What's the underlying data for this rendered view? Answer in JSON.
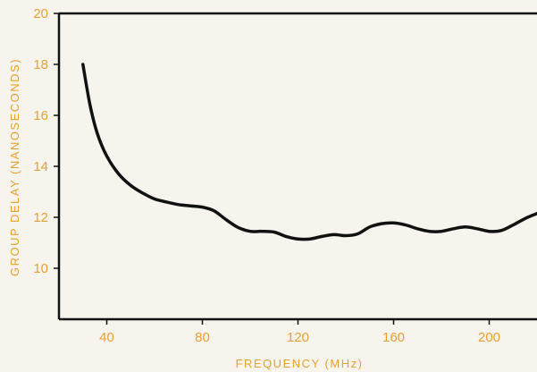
{
  "chart_data": {
    "type": "line",
    "title": "",
    "xlabel": "FREQUENCY (MHz)",
    "ylabel": "GROUP DELAY (NANOSECONDS)",
    "xlim": [
      20,
      220
    ],
    "ylim": [
      8,
      20
    ],
    "x_ticks": [
      40,
      80,
      120,
      160,
      200
    ],
    "y_ticks": [
      10,
      12,
      14,
      16,
      18,
      20
    ],
    "grid": false,
    "series": [
      {
        "x": [
          30,
          33,
          36,
          40,
          45,
          50,
          55,
          60,
          65,
          70,
          75,
          80,
          85,
          90,
          95,
          100,
          105,
          110,
          115,
          120,
          125,
          130,
          135,
          140,
          145,
          150,
          155,
          160,
          165,
          170,
          175,
          180,
          185,
          190,
          195,
          200,
          205,
          210,
          215,
          220
        ],
        "y": [
          18.0,
          16.4,
          15.3,
          14.4,
          13.7,
          13.25,
          12.95,
          12.72,
          12.6,
          12.5,
          12.45,
          12.4,
          12.25,
          11.9,
          11.6,
          11.45,
          11.45,
          11.42,
          11.25,
          11.15,
          11.15,
          11.25,
          11.32,
          11.28,
          11.35,
          11.62,
          11.75,
          11.78,
          11.7,
          11.55,
          11.45,
          11.45,
          11.55,
          11.62,
          11.55,
          11.45,
          11.48,
          11.7,
          11.95,
          12.15
        ]
      }
    ],
    "colors": {
      "line": "#111111",
      "axes": "#111111",
      "labels": "#e8a030",
      "background": "#f7f4ee"
    }
  }
}
